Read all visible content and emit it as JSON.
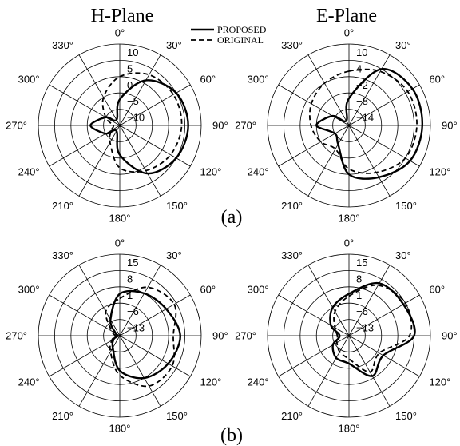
{
  "column_titles": [
    "H-Plane",
    "E-Plane"
  ],
  "panel_labels": [
    "(a)",
    "(b)"
  ],
  "legend": [
    "PROPOSED",
    "ORIGINAL"
  ],
  "chart_data": [
    {
      "type": "polar",
      "title": "H-Plane",
      "panel": "(a)",
      "angle_labels": [
        "0°",
        "30°",
        "60°",
        "90°",
        "120°",
        "150°",
        "180°",
        "210°",
        "240°",
        "270°",
        "300°",
        "330°"
      ],
      "r_ticks": [
        "10",
        "5",
        "0",
        "−5",
        "−10"
      ],
      "r_range": [
        -15,
        10
      ],
      "angles_deg": [
        0,
        30,
        60,
        90,
        120,
        150,
        180,
        210,
        240,
        270,
        300,
        330
      ],
      "series": [
        {
          "name": "PROPOSED",
          "style": "solid",
          "values": [
            -7,
            1,
            5,
            6,
            5,
            2,
            -6,
            -13,
            -10,
            -6,
            -10,
            -13
          ]
        },
        {
          "name": "ORIGINAL",
          "style": "dashed",
          "values": [
            0,
            3,
            4,
            4,
            3,
            1,
            -2,
            -9,
            -12,
            -13,
            -10,
            -5
          ]
        }
      ]
    },
    {
      "type": "polar",
      "title": "E-Plane",
      "panel": "(a)",
      "angle_labels": [
        "0°",
        "30°",
        "60°",
        "90°",
        "120°",
        "150°",
        "180°",
        "210°",
        "240°",
        "270°",
        "300°",
        "330°"
      ],
      "r_ticks": [
        "10",
        "4",
        "−2",
        "−8",
        "−14"
      ],
      "r_range": [
        -20,
        10
      ],
      "angles_deg": [
        0,
        30,
        60,
        90,
        120,
        150,
        180,
        210,
        240,
        270,
        300,
        330
      ],
      "series": [
        {
          "name": "PROPOSED",
          "style": "solid",
          "values": [
            -10,
            4,
            7,
            7,
            6,
            2,
            -2,
            -12,
            -14,
            -8,
            -13,
            -18
          ]
        },
        {
          "name": "ORIGINAL",
          "style": "dashed",
          "values": [
            0,
            3,
            5,
            5,
            4,
            0,
            -4,
            -10,
            -8,
            -6,
            -4,
            -2
          ]
        }
      ]
    },
    {
      "type": "polar",
      "title": "",
      "panel": "(b)",
      "angle_labels": [
        "0°",
        "30°",
        "60°",
        "90°",
        "120°",
        "150°",
        "180°",
        "210°",
        "240°",
        "270°",
        "300°",
        "330°"
      ],
      "r_ticks": [
        "15",
        "8",
        "1",
        "−6",
        "−13"
      ],
      "r_range": [
        -20,
        15
      ],
      "angles_deg": [
        0,
        30,
        60,
        90,
        120,
        150,
        180,
        210,
        240,
        270,
        300,
        330
      ],
      "series": [
        {
          "name": "PROPOSED",
          "style": "solid",
          "values": [
            -2,
            1,
            3,
            6,
            4,
            1,
            -5,
            -14,
            -17,
            -19,
            -18,
            -12
          ]
        },
        {
          "name": "ORIGINAL",
          "style": "dashed",
          "values": [
            -4,
            4,
            7,
            3,
            6,
            5,
            -3,
            -12,
            -16,
            -18,
            -16,
            -8
          ]
        }
      ]
    },
    {
      "type": "polar",
      "title": "",
      "panel": "(b)",
      "angle_labels": [
        "0°",
        "30°",
        "60°",
        "90°",
        "120°",
        "150°",
        "180°",
        "210°",
        "240°",
        "270°",
        "300°",
        "330°"
      ],
      "r_ticks": [
        "15",
        "8",
        "1",
        "−6",
        "−13"
      ],
      "r_range": [
        -20,
        15
      ],
      "angles_deg": [
        0,
        30,
        60,
        90,
        120,
        150,
        180,
        210,
        240,
        270,
        300,
        330
      ],
      "series": [
        {
          "name": "PROPOSED",
          "style": "solid",
          "values": [
            -2,
            6,
            7,
            8,
            -3,
            0,
            -8,
            -9,
            -12,
            -16,
            -11,
            -6
          ]
        },
        {
          "name": "ORIGINAL",
          "style": "dashed",
          "values": [
            -3,
            5,
            8,
            6,
            -5,
            -2,
            -10,
            -12,
            -14,
            -15,
            -13,
            -8
          ]
        }
      ]
    }
  ]
}
